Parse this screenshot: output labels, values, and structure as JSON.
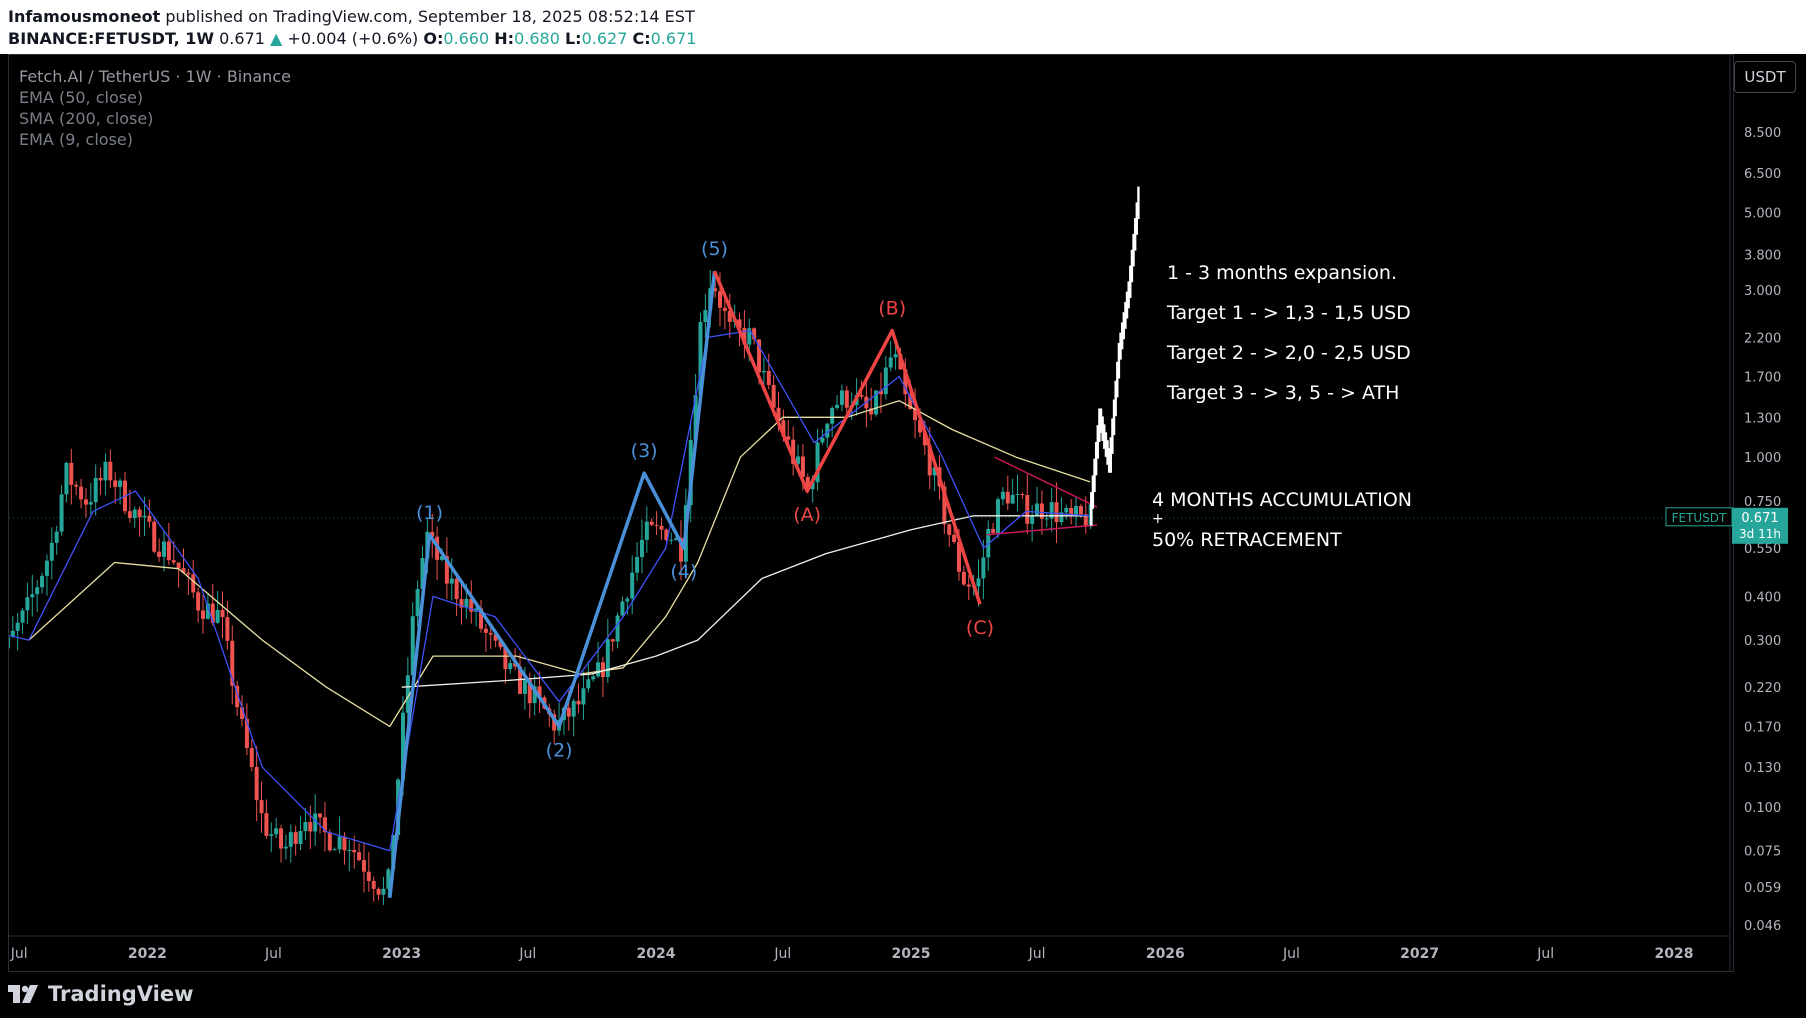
{
  "header": {
    "author": "Infamousmoneot",
    "published_text": " published on TradingView.com, September 18, 2025 08:52:14 EST",
    "symbol": "BINANCE:FETUSDT, 1W",
    "last": "0.671",
    "change_arrow": "▲",
    "change": "+0.004 (+0.6%)",
    "o_label": "O:",
    "o": "0.660",
    "h_label": "H:",
    "h": "0.680",
    "l_label": "L:",
    "l": "0.627",
    "c_label": "C:",
    "c": "0.671"
  },
  "legend": {
    "title": "Fetch.AI / TetherUS · 1W · Binance",
    "indicators": [
      "EMA (50, close)",
      "SMA (200, close)",
      "EMA (9, close)"
    ]
  },
  "currency_button": "USDT",
  "price_tag": {
    "symbol": "FETUSDT",
    "value": "0.671",
    "countdown": "3d 11h",
    "color": "#26a69a"
  },
  "footer": {
    "logo_text": "TradingView"
  },
  "annotations": {
    "expansion": "1 - 3 months expansion.",
    "target1": "Target 1 - > 1,3 - 1,5 USD",
    "target2": "Target 2 - > 2,0 - 2,5 USD",
    "target3": "Target 3 - > 3, 5 - > ATH",
    "accum1": "4 MONTHS ACCUMULATION",
    "accum2": "+",
    "accum3": "50% RETRACEMENT"
  },
  "colors": {
    "bull": "#26a69a",
    "bear": "#ef5350",
    "impulse_wave": "#4a90d9",
    "corrective_wave": "#ef4444",
    "ema50": "#e8dfa0",
    "sma200": "#f0f0e6",
    "ema9": "#3f51f5",
    "trendline": "#c2185b"
  },
  "chart_data": {
    "type": "candlestick",
    "symbol": "BINANCE:FETUSDT",
    "timeframe": "1W",
    "y_scale": "log",
    "y_ticks": [
      8.5,
      6.5,
      5.0,
      3.8,
      3.0,
      2.2,
      1.7,
      1.3,
      1.0,
      0.75,
      0.55,
      0.4,
      0.3,
      0.22,
      0.17,
      0.13,
      0.1,
      0.075,
      0.059,
      0.046
    ],
    "y_tick_labels": [
      "8.500",
      "6.500",
      "5.000",
      "3.800",
      "3.000",
      "2.200",
      "1.700",
      "1.300",
      "1.000",
      "0.750",
      "0.550",
      "0.400",
      "0.300",
      "0.220",
      "0.170",
      "0.130",
      "0.100",
      "0.075",
      "0.059",
      "0.046"
    ],
    "x_ticks": [
      "2021-07",
      "2022-01",
      "2022-07",
      "2023-01",
      "2023-07",
      "2024-01",
      "2024-07",
      "2025-01",
      "2025-07",
      "2026-01",
      "2026-07",
      "2027-01",
      "2027-07",
      "2028-01"
    ],
    "x_tick_labels": [
      "Jul",
      "2022",
      "Jul",
      "2023",
      "Jul",
      "2024",
      "Jul",
      "2025",
      "Jul",
      "2026",
      "Jul",
      "2027",
      "Jul",
      "2028"
    ],
    "price_path": [
      [
        "2021-05-15",
        0.3
      ],
      [
        "2021-06-15",
        0.28
      ],
      [
        "2021-07-15",
        0.36
      ],
      [
        "2021-08-20",
        0.55
      ],
      [
        "2021-09-10",
        0.9
      ],
      [
        "2021-10-10",
        0.75
      ],
      [
        "2021-11-10",
        0.92
      ],
      [
        "2021-12-05",
        0.75
      ],
      [
        "2022-01-10",
        0.6
      ],
      [
        "2022-02-10",
        0.52
      ],
      [
        "2022-03-20",
        0.38
      ],
      [
        "2022-04-20",
        0.35
      ],
      [
        "2022-05-20",
        0.17
      ],
      [
        "2022-06-20",
        0.09
      ],
      [
        "2022-07-20",
        0.075
      ],
      [
        "2022-08-20",
        0.095
      ],
      [
        "2022-09-20",
        0.082
      ],
      [
        "2022-10-20",
        0.08
      ],
      [
        "2022-11-20",
        0.065
      ],
      [
        "2022-12-15",
        0.055
      ],
      [
        "2023-01-10",
        0.2
      ],
      [
        "2023-01-25",
        0.4
      ],
      [
        "2023-02-10",
        0.6
      ],
      [
        "2023-03-10",
        0.45
      ],
      [
        "2023-04-10",
        0.38
      ],
      [
        "2023-05-10",
        0.3
      ],
      [
        "2023-06-10",
        0.24
      ],
      [
        "2023-07-10",
        0.21
      ],
      [
        "2023-08-15",
        0.17
      ],
      [
        "2023-09-20",
        0.2
      ],
      [
        "2023-10-20",
        0.25
      ],
      [
        "2023-11-20",
        0.4
      ],
      [
        "2023-12-20",
        0.6
      ],
      [
        "2024-01-20",
        0.62
      ],
      [
        "2024-02-10",
        0.55
      ],
      [
        "2024-02-25",
        1.2
      ],
      [
        "2024-03-10",
        2.5
      ],
      [
        "2024-03-25",
        3.3
      ],
      [
        "2024-04-20",
        2.3
      ],
      [
        "2024-05-20",
        2.2
      ],
      [
        "2024-06-20",
        1.4
      ],
      [
        "2024-07-20",
        1.0
      ],
      [
        "2024-08-10",
        0.8
      ],
      [
        "2024-09-10",
        1.4
      ],
      [
        "2024-10-10",
        1.5
      ],
      [
        "2024-11-10",
        1.3
      ],
      [
        "2024-12-10",
        2.0
      ],
      [
        "2024-12-30",
        1.4
      ],
      [
        "2025-01-30",
        1.0
      ],
      [
        "2025-02-20",
        0.7
      ],
      [
        "2025-03-20",
        0.45
      ],
      [
        "2025-04-10",
        0.42
      ],
      [
        "2025-04-25",
        0.6
      ],
      [
        "2025-05-20",
        0.8
      ],
      [
        "2025-06-20",
        0.7
      ],
      [
        "2025-07-20",
        0.72
      ],
      [
        "2025-08-20",
        0.66
      ],
      [
        "2025-09-15",
        0.671
      ]
    ],
    "series": [
      {
        "name": "EMA (50, close)",
        "points": [
          [
            "2021-07-15",
            0.3
          ],
          [
            "2021-11-15",
            0.5
          ],
          [
            "2022-02-15",
            0.48
          ],
          [
            "2022-06-15",
            0.3
          ],
          [
            "2022-09-15",
            0.22
          ],
          [
            "2022-12-15",
            0.17
          ],
          [
            "2023-02-15",
            0.27
          ],
          [
            "2023-06-15",
            0.27
          ],
          [
            "2023-09-15",
            0.24
          ],
          [
            "2023-11-15",
            0.25
          ],
          [
            "2024-01-15",
            0.35
          ],
          [
            "2024-03-01",
            0.5
          ],
          [
            "2024-05-01",
            1.0
          ],
          [
            "2024-07-01",
            1.3
          ],
          [
            "2024-10-01",
            1.3
          ],
          [
            "2024-12-15",
            1.45
          ],
          [
            "2025-03-01",
            1.2
          ],
          [
            "2025-06-01",
            1.0
          ],
          [
            "2025-09-15",
            0.85
          ]
        ]
      },
      {
        "name": "SMA (200, close)",
        "points": [
          [
            "2023-01-01",
            0.22
          ],
          [
            "2023-06-01",
            0.23
          ],
          [
            "2023-10-01",
            0.24
          ],
          [
            "2024-01-01",
            0.27
          ],
          [
            "2024-03-01",
            0.3
          ],
          [
            "2024-06-01",
            0.45
          ],
          [
            "2024-09-01",
            0.53
          ],
          [
            "2025-01-01",
            0.62
          ],
          [
            "2025-04-01",
            0.68
          ],
          [
            "2025-09-15",
            0.68
          ]
        ]
      },
      {
        "name": "EMA (9, close)",
        "points": [
          [
            "2021-05-15",
            0.32
          ],
          [
            "2021-07-15",
            0.3
          ],
          [
            "2021-10-15",
            0.7
          ],
          [
            "2021-12-15",
            0.8
          ],
          [
            "2022-03-15",
            0.45
          ],
          [
            "2022-06-15",
            0.13
          ],
          [
            "2022-09-15",
            0.085
          ],
          [
            "2022-12-15",
            0.075
          ],
          [
            "2023-02-15",
            0.4
          ],
          [
            "2023-05-15",
            0.35
          ],
          [
            "2023-08-15",
            0.2
          ],
          [
            "2023-11-15",
            0.35
          ],
          [
            "2024-01-15",
            0.55
          ],
          [
            "2024-03-15",
            2.2
          ],
          [
            "2024-05-15",
            2.3
          ],
          [
            "2024-08-15",
            1.1
          ],
          [
            "2024-12-15",
            1.7
          ],
          [
            "2025-02-15",
            1.0
          ],
          [
            "2025-04-15",
            0.55
          ],
          [
            "2025-06-15",
            0.7
          ],
          [
            "2025-09-15",
            0.68
          ]
        ]
      }
    ],
    "impulse_waves": [
      {
        "label": "(1)",
        "date": "2023-02-10",
        "price": 0.6
      },
      {
        "label": "(2)",
        "date": "2023-08-15",
        "price": 0.17
      },
      {
        "label": "(3)",
        "date": "2023-12-15",
        "price": 0.9
      },
      {
        "label": "(4)",
        "date": "2024-02-10",
        "price": 0.55
      },
      {
        "label": "(5)",
        "date": "2024-03-25",
        "price": 3.4
      }
    ],
    "wave_start": {
      "date": "2022-12-15",
      "price": 0.055
    },
    "corrective_waves": [
      {
        "label": "(A)",
        "date": "2024-08-05",
        "price": 0.8
      },
      {
        "label": "(B)",
        "date": "2024-12-05",
        "price": 2.3
      },
      {
        "label": "(C)",
        "date": "2025-04-10",
        "price": 0.38
      }
    ],
    "projection": [
      [
        "2025-09-15",
        0.671
      ],
      [
        "2025-09-29",
        1.3
      ],
      [
        "2025-10-13",
        0.95
      ],
      [
        "2025-10-27",
        2.0
      ],
      [
        "2025-11-10",
        3.0
      ],
      [
        "2025-11-24",
        5.6
      ]
    ],
    "trendlines": [
      {
        "from": [
          "2025-05-01",
          1.0
        ],
        "to": [
          "2025-09-25",
          0.72
        ]
      },
      {
        "from": [
          "2025-04-20",
          0.6
        ],
        "to": [
          "2025-09-25",
          0.64
        ]
      }
    ],
    "last_price": 0.671
  }
}
